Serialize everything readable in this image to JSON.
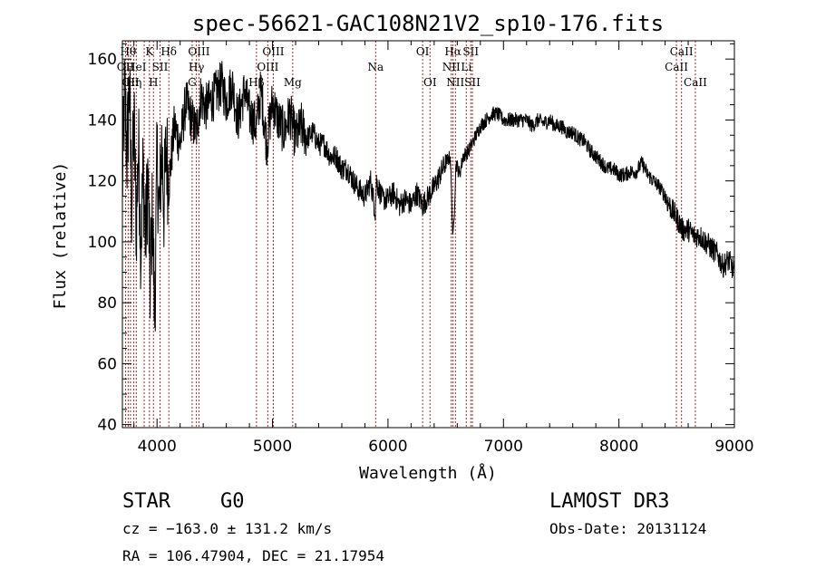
{
  "chart_data": {
    "type": "line",
    "title": "spec-56621-GAC108N21V2_sp10-176.fits",
    "xlabel": "Wavelength (Å)",
    "ylabel": "Flux (relative)",
    "xlim": [
      3700,
      9000
    ],
    "ylim": [
      39,
      166
    ],
    "xticks": [
      4000,
      5000,
      6000,
      7000,
      8000,
      9000
    ],
    "yticks": [
      40,
      60,
      80,
      100,
      120,
      140,
      160
    ],
    "series": [
      {
        "name": "spectrum",
        "anchors": [
          [
            3700,
            118
          ],
          [
            3720,
            150
          ],
          [
            3740,
            128
          ],
          [
            3760,
            152
          ],
          [
            3780,
            112
          ],
          [
            3800,
            140
          ],
          [
            3820,
            105
          ],
          [
            3840,
            132
          ],
          [
            3860,
            98
          ],
          [
            3880,
            125
          ],
          [
            3900,
            100
          ],
          [
            3920,
            122
          ],
          [
            3940,
            86
          ],
          [
            3960,
            110
          ],
          [
            3980,
            75
          ],
          [
            4000,
            128
          ],
          [
            4020,
            108
          ],
          [
            4040,
            132
          ],
          [
            4060,
            112
          ],
          [
            4080,
            132
          ],
          [
            4100,
            118
          ],
          [
            4150,
            138
          ],
          [
            4200,
            132
          ],
          [
            4250,
            146
          ],
          [
            4300,
            140
          ],
          [
            4340,
            136
          ],
          [
            4380,
            148
          ],
          [
            4420,
            144
          ],
          [
            4500,
            148
          ],
          [
            4560,
            152
          ],
          [
            4600,
            146
          ],
          [
            4650,
            152
          ],
          [
            4700,
            140
          ],
          [
            4760,
            150
          ],
          [
            4800,
            142
          ],
          [
            4860,
            138
          ],
          [
            4900,
            150
          ],
          [
            4950,
            132
          ],
          [
            5000,
            146
          ],
          [
            5050,
            140
          ],
          [
            5100,
            136
          ],
          [
            5150,
            142
          ],
          [
            5200,
            134
          ],
          [
            5250,
            138
          ],
          [
            5300,
            134
          ],
          [
            5350,
            136
          ],
          [
            5400,
            132
          ],
          [
            5450,
            132
          ],
          [
            5500,
            128
          ],
          [
            5550,
            128
          ],
          [
            5600,
            124
          ],
          [
            5650,
            124
          ],
          [
            5700,
            120
          ],
          [
            5750,
            117
          ],
          [
            5800,
            115
          ],
          [
            5850,
            120
          ],
          [
            5890,
            110
          ],
          [
            5900,
            120
          ],
          [
            5950,
            114
          ],
          [
            6000,
            114
          ],
          [
            6050,
            116
          ],
          [
            6100,
            112
          ],
          [
            6150,
            114
          ],
          [
            6200,
            112
          ],
          [
            6250,
            116
          ],
          [
            6300,
            112
          ],
          [
            6350,
            115
          ],
          [
            6400,
            118
          ],
          [
            6450,
            122
          ],
          [
            6500,
            126
          ],
          [
            6540,
            128
          ],
          [
            6563,
            100
          ],
          [
            6590,
            126
          ],
          [
            6620,
            122
          ],
          [
            6650,
            128
          ],
          [
            6700,
            130
          ],
          [
            6750,
            134
          ],
          [
            6800,
            138
          ],
          [
            6850,
            140
          ],
          [
            6900,
            142
          ],
          [
            6950,
            142
          ],
          [
            7000,
            140
          ],
          [
            7050,
            140
          ],
          [
            7100,
            140
          ],
          [
            7150,
            140
          ],
          [
            7200,
            140
          ],
          [
            7250,
            138
          ],
          [
            7300,
            140
          ],
          [
            7350,
            139
          ],
          [
            7400,
            140
          ],
          [
            7450,
            138
          ],
          [
            7500,
            138
          ],
          [
            7550,
            136
          ],
          [
            7600,
            136
          ],
          [
            7650,
            134
          ],
          [
            7700,
            133
          ],
          [
            7750,
            130
          ],
          [
            7800,
            128
          ],
          [
            7850,
            126
          ],
          [
            7900,
            124
          ],
          [
            7950,
            124
          ],
          [
            8000,
            122
          ],
          [
            8050,
            122
          ],
          [
            8100,
            123
          ],
          [
            8150,
            123
          ],
          [
            8200,
            126
          ],
          [
            8250,
            122
          ],
          [
            8300,
            120
          ],
          [
            8350,
            118
          ],
          [
            8400,
            115
          ],
          [
            8450,
            111
          ],
          [
            8500,
            108
          ],
          [
            8550,
            104
          ],
          [
            8600,
            104
          ],
          [
            8650,
            102
          ],
          [
            8700,
            102
          ],
          [
            8750,
            100
          ],
          [
            8800,
            98
          ],
          [
            8850,
            96
          ],
          [
            8900,
            92
          ],
          [
            8950,
            94
          ],
          [
            9000,
            90
          ]
        ]
      }
    ],
    "lines": [
      {
        "wave": 3727,
        "label": "OII",
        "row": 2
      },
      {
        "wave": 3750,
        "label": "Hθ",
        "row": 1
      },
      {
        "wave": 3770,
        "label": "OII",
        "row": 3
      },
      {
        "wave": 3798,
        "label": "Hη",
        "row": 3
      },
      {
        "wave": 3820,
        "label": "HeI",
        "row": 2
      },
      {
        "wave": 3889,
        "label": "",
        "row": 0
      },
      {
        "wave": 3934,
        "label": "K",
        "row": 1
      },
      {
        "wave": 3969,
        "label": "H",
        "row": 3
      },
      {
        "wave": 4026,
        "label": "SII",
        "row": 2
      },
      {
        "wave": 4102,
        "label": "Hδ",
        "row": 1
      },
      {
        "wave": 4304,
        "label": "G",
        "row": 3
      },
      {
        "wave": 4341,
        "label": "Hγ",
        "row": 2
      },
      {
        "wave": 4363,
        "label": "OIII",
        "row": 1
      },
      {
        "wave": 4861,
        "label": "Hβ",
        "row": 3
      },
      {
        "wave": 4959,
        "label": "OIII",
        "row": 2
      },
      {
        "wave": 5007,
        "label": "OIII",
        "row": 1
      },
      {
        "wave": 5175,
        "label": "Mg",
        "row": 3
      },
      {
        "wave": 5893,
        "label": "Na",
        "row": 2
      },
      {
        "wave": 6300,
        "label": "OI",
        "row": 1
      },
      {
        "wave": 6364,
        "label": "OI",
        "row": 3
      },
      {
        "wave": 6548,
        "label": "NII",
        "row": 2
      },
      {
        "wave": 6563,
        "label": "Hα",
        "row": 1
      },
      {
        "wave": 6584,
        "label": "NII",
        "row": 3
      },
      {
        "wave": 6678,
        "label": "Li",
        "row": 2
      },
      {
        "wave": 6717,
        "label": "SII",
        "row": 1
      },
      {
        "wave": 6731,
        "label": "SII",
        "row": 3
      },
      {
        "wave": 8498,
        "label": "CaII",
        "row": 2
      },
      {
        "wave": 8542,
        "label": "CaII",
        "row": 1
      },
      {
        "wave": 8662,
        "label": "CaII",
        "row": 3
      }
    ]
  },
  "info": {
    "class_label": "STAR",
    "subclass": "G0",
    "survey": "LAMOST DR3",
    "cz": "cz = −163.0 ± 131.2 km/s",
    "obs_date": "Obs-Date: 20131124",
    "coords": "RA = 106.47904, DEC =  21.17954"
  }
}
